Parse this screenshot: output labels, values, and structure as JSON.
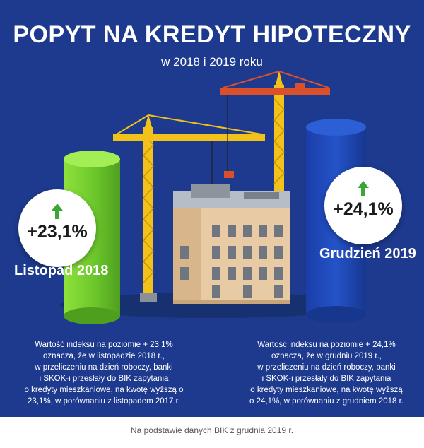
{
  "header": {
    "title": "POPYT NA KREDYT HIPOTECZNY",
    "subtitle": "w 2018 i 2019 roku"
  },
  "left": {
    "percent": "+23,1%",
    "period": "Listopad 2018",
    "description": [
      "Wartość indeksu na poziomie  + 23,1%",
      "oznacza, że w listopadzie 2018 r.,",
      "w przeliczeniu na dzień roboczy, banki",
      "i SKOK-i przesłały do BIK zapytania",
      "o kredyty mieszkaniowe, na kwotę wyższą o",
      "23,1%, w porównaniu z listopadem 2017 r."
    ]
  },
  "right": {
    "percent": "+24,1%",
    "period": "Grudzień 2019",
    "description": [
      "Wartość indeksu na poziomie  + 24,1%",
      "oznacza, że w grudniu 2019 r.,",
      "w przeliczeniu na dzień roboczy, banki",
      "i SKOK-i przesłały do BIK zapytania",
      "o kredyty mieszkaniowe, na kwotę wyższą",
      "o 24,1%, w porównaniu z grudniem 2018 r."
    ]
  },
  "footer": {
    "source": "Na podstawie danych BIK z grudnia 2019 r."
  },
  "colors": {
    "background": "#1e3a8e",
    "left_bar": "#6cc72b",
    "right_bar": "#1c47b8",
    "arrow": "#3aa635",
    "crane": "#f3c21a",
    "crane_red": "#d9502a"
  }
}
